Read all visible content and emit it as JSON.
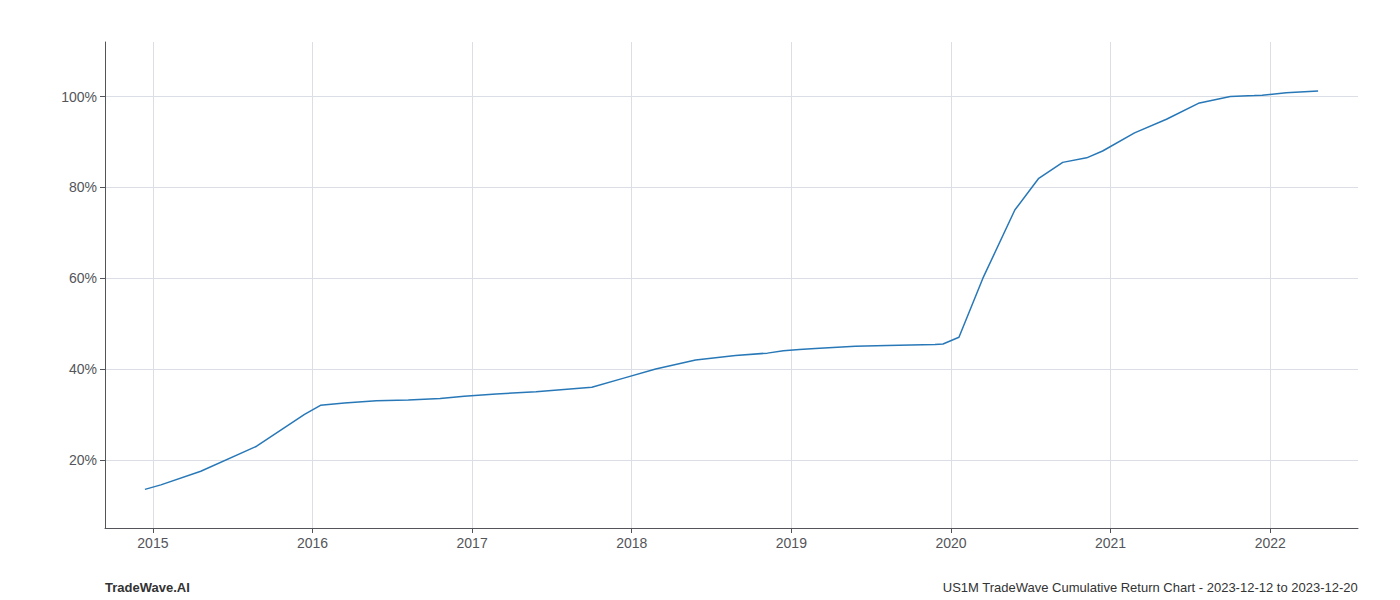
{
  "chart_data": {
    "type": "line",
    "x": [
      2014.95,
      2015.05,
      2015.3,
      2015.65,
      2015.95,
      2016.05,
      2016.2,
      2016.4,
      2016.6,
      2016.8,
      2016.95,
      2017.15,
      2017.4,
      2017.75,
      2017.95,
      2018.15,
      2018.4,
      2018.65,
      2018.85,
      2018.95,
      2019.05,
      2019.15,
      2019.4,
      2019.6,
      2019.75,
      2019.9,
      2019.95,
      2020.05,
      2020.2,
      2020.4,
      2020.55,
      2020.7,
      2020.85,
      2020.95,
      2021.15,
      2021.35,
      2021.55,
      2021.75,
      2021.9,
      2021.95,
      2022.1,
      2022.3
    ],
    "values": [
      13.5,
      14.5,
      17.5,
      23,
      30,
      32,
      32.5,
      33,
      33.2,
      33.5,
      34,
      34.5,
      35,
      36,
      38,
      40,
      42,
      43,
      43.5,
      44,
      44.3,
      44.5,
      45,
      45.2,
      45.3,
      45.4,
      45.5,
      47,
      60,
      75,
      82,
      85.5,
      86.5,
      88,
      92,
      95,
      98.5,
      100,
      100.2,
      100.3,
      100.8,
      101.2
    ],
    "color": "#2878b8",
    "xlim": [
      2014.7,
      2022.55
    ],
    "xticks": [
      2015,
      2016,
      2017,
      2018,
      2019,
      2020,
      2021,
      2022
    ],
    "ylim": [
      5,
      112
    ],
    "yticks": [
      {
        "value": 20,
        "label": "20%"
      },
      {
        "value": 40,
        "label": "40%"
      },
      {
        "value": 60,
        "label": "60%"
      },
      {
        "value": 80,
        "label": "80%"
      },
      {
        "value": 100,
        "label": "100%"
      }
    ],
    "grid": true,
    "annotations": [
      "TradeWave.AI",
      "US1M TradeWave Cumulative Return Chart - 2023-12-12 to 2023-12-20"
    ]
  }
}
